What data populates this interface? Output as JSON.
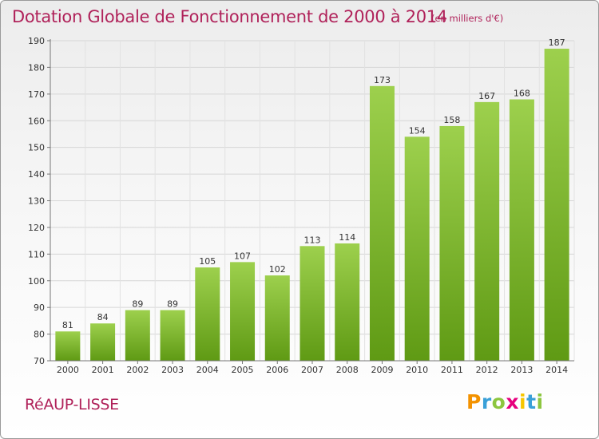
{
  "header": {
    "title": "Dotation Globale de Fonctionnement de 2000 à 2014",
    "unit": "(en milliers d'€)"
  },
  "footer": {
    "commune": "RéAUP-LISSE",
    "logo_letters": [
      "P",
      "r",
      "o",
      "x",
      "i",
      "t",
      "i"
    ],
    "logo_colors": [
      "#f39200",
      "#3aa0d8",
      "#8cc63f",
      "#e6007e",
      "#f7c600",
      "#3aa0d8",
      "#8cc63f"
    ]
  },
  "colors": {
    "bar_light": "#9dd04d",
    "bar_dark": "#5f9a14",
    "title": "#b0225a"
  },
  "chart_data": {
    "type": "bar",
    "categories": [
      "2000",
      "2001",
      "2002",
      "2003",
      "2004",
      "2005",
      "2006",
      "2007",
      "2008",
      "2009",
      "2010",
      "2011",
      "2012",
      "2013",
      "2014"
    ],
    "values": [
      81,
      84,
      89,
      89,
      105,
      107,
      102,
      113,
      114,
      173,
      154,
      158,
      167,
      168,
      187
    ],
    "title": "Dotation Globale de Fonctionnement de 2000 à 2014",
    "subtitle": "(en milliers d'€)",
    "xlabel": "",
    "ylabel": "",
    "ylim": [
      70,
      190
    ],
    "yticks": [
      70,
      80,
      90,
      100,
      110,
      120,
      130,
      140,
      150,
      160,
      170,
      180,
      190
    ],
    "grid": true,
    "legend": "none"
  }
}
